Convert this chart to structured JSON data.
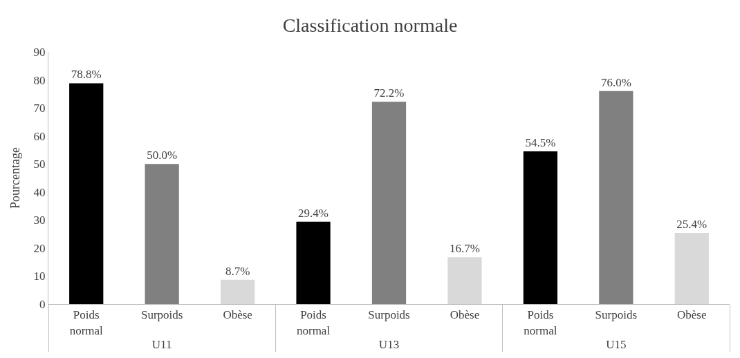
{
  "chart_data": {
    "type": "bar",
    "title": "Classification normale",
    "ylabel": "Pourcentage",
    "categories": [
      "U11",
      "U13",
      "U15"
    ],
    "series": [
      {
        "name": "Poids normal",
        "color": "#000000",
        "values": [
          78.8,
          29.4,
          54.5
        ],
        "value_labels": [
          "78.8%",
          "29.4%",
          "54.5%"
        ]
      },
      {
        "name": "Surpoids",
        "color": "#808080",
        "values": [
          50.0,
          72.2,
          76.0
        ],
        "value_labels": [
          "50.0%",
          "72.2%",
          "76.0%"
        ]
      },
      {
        "name": "Obèse",
        "color": "#d9d9d9",
        "values": [
          8.7,
          16.7,
          25.4
        ],
        "value_labels": [
          "8.7%",
          "16.7%",
          "25.4%"
        ]
      }
    ],
    "ylim": [
      0,
      90
    ],
    "yticks": [
      0,
      10,
      20,
      30,
      40,
      50,
      60,
      70,
      80,
      90
    ],
    "legend": false
  }
}
